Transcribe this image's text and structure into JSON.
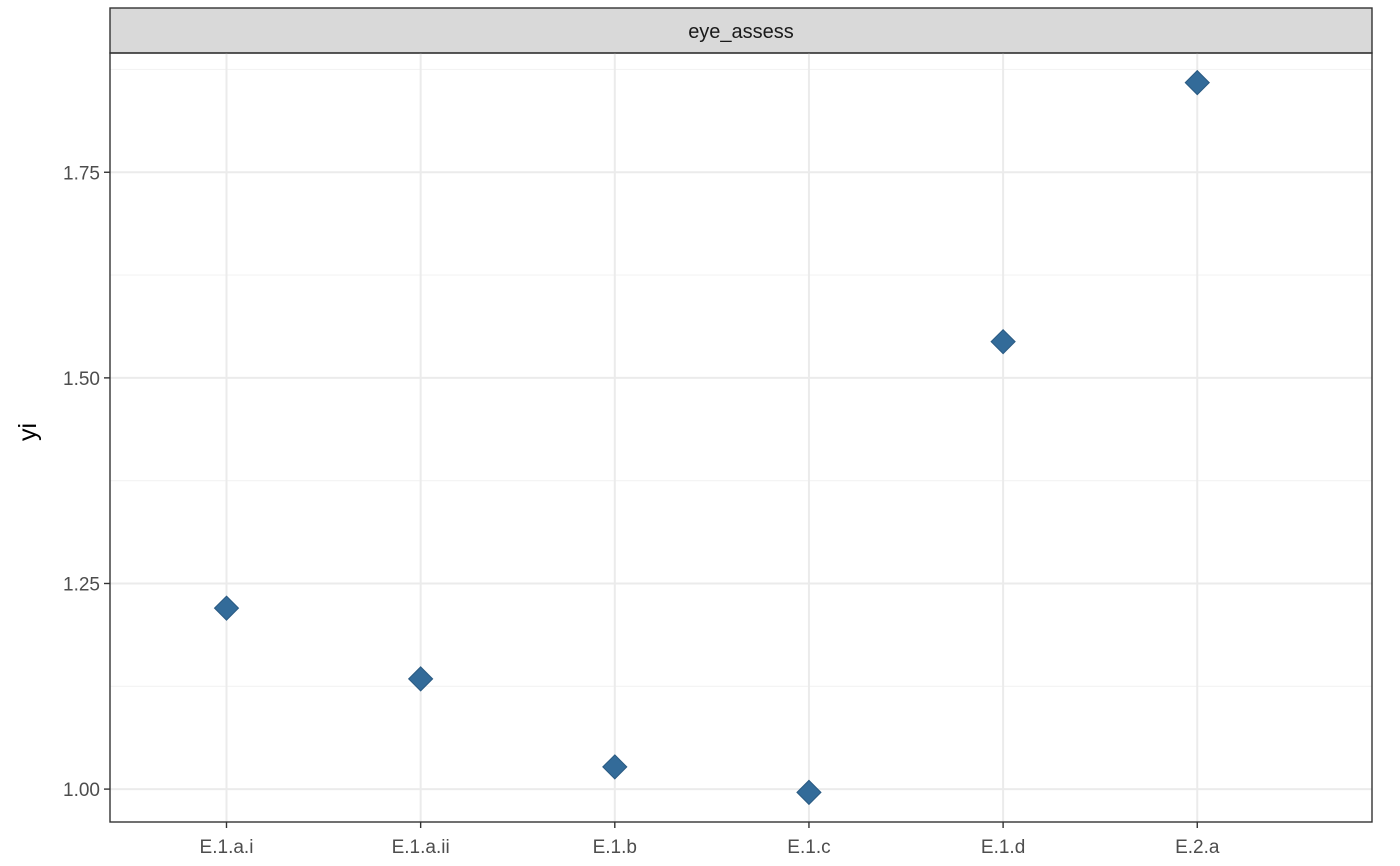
{
  "chart_data": {
    "type": "scatter",
    "facet_label": "eye_assess",
    "categories": [
      "E.1.a.i",
      "E.1.a.ii",
      "E.1.b",
      "E.1.c",
      "E.1.d",
      "E.2.a"
    ],
    "values": [
      1.22,
      1.134,
      1.027,
      0.996,
      1.544,
      1.859
    ],
    "ylabel": "yi",
    "xlabel": "",
    "ylim": [
      0.96,
      1.895
    ],
    "y_ticks": [
      1.0,
      1.25,
      1.5,
      1.75
    ],
    "y_tick_labels": [
      "1.00",
      "1.25",
      "1.50",
      "1.75"
    ],
    "grid": true,
    "legend": "none",
    "marker": "diamond",
    "colors": {
      "point": "#336b99",
      "strip_bg": "#d9d9d9",
      "grid_major": "#ebebeb",
      "grid_minor": "#f3f3f3",
      "panel_border": "#333333"
    }
  }
}
